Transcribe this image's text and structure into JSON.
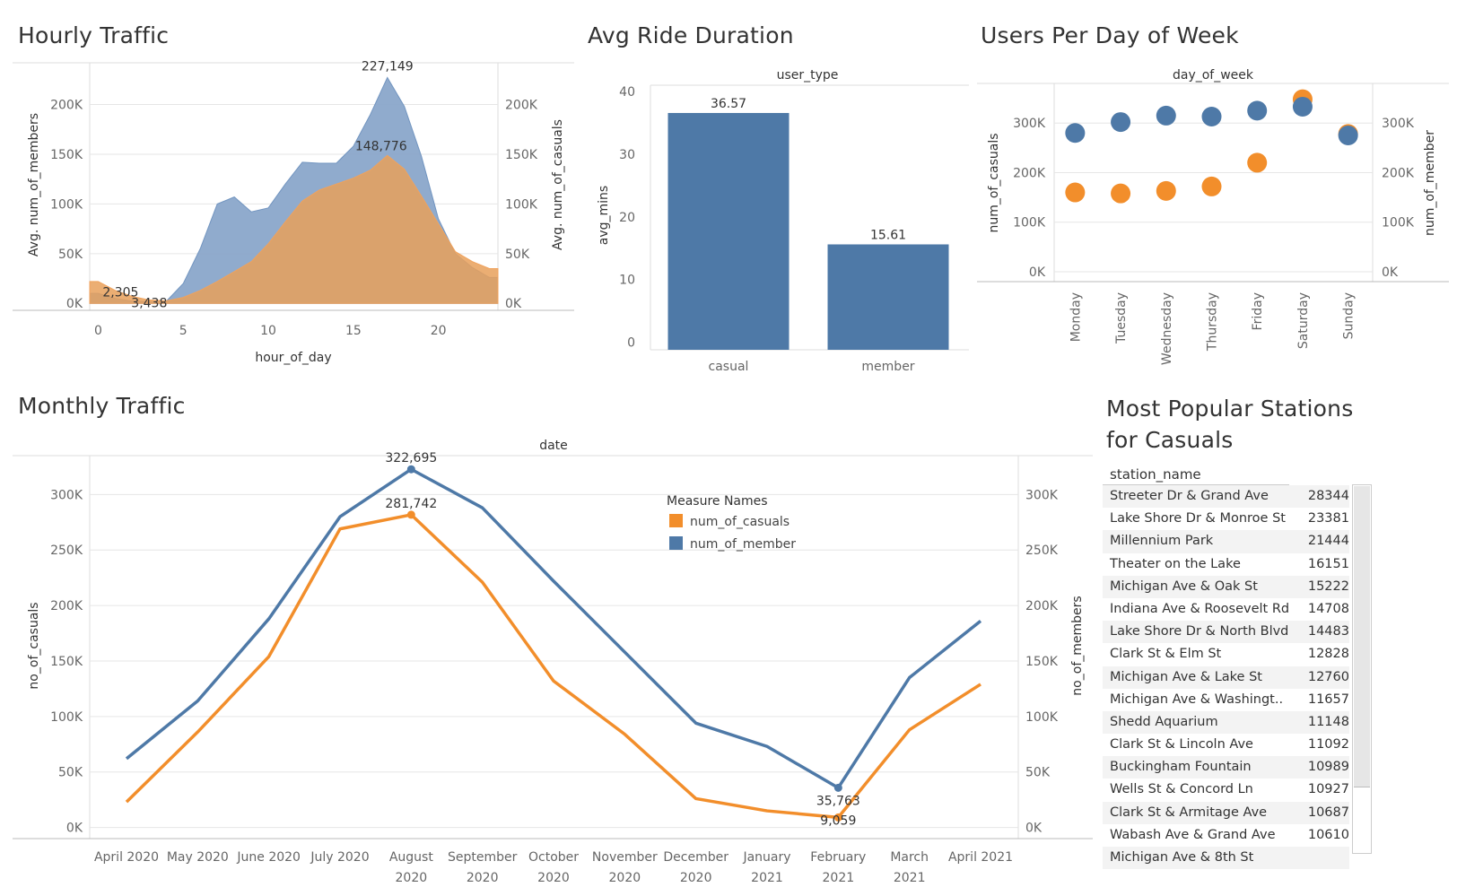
{
  "titles": {
    "hourly": "Hourly Traffic",
    "duration": "Avg Ride Duration",
    "dow": "Users Per Day of Week",
    "monthly": "Monthly Traffic",
    "stations": "Most Popular Stations\nfor Casuals"
  },
  "colors": {
    "member": "#4e79a7",
    "casual": "#f28e2b",
    "member_area": "#8aa7ca",
    "casual_area": "#e8a566",
    "grid": "#e6e6e6",
    "axis": "#cfcfcf"
  },
  "chart_data": [
    {
      "id": "hourly",
      "type": "area",
      "xlabel": "hour_of_day",
      "ylabel_left": "Avg. num_of_members",
      "ylabel_right": "Avg. num_of_casuals",
      "x": [
        0,
        1,
        2,
        3,
        4,
        5,
        6,
        7,
        8,
        9,
        10,
        11,
        12,
        13,
        14,
        15,
        16,
        17,
        18,
        19,
        20,
        21,
        22,
        23
      ],
      "xticks": [
        0,
        5,
        10,
        15,
        20
      ],
      "xlim": [
        -0.5,
        23.5
      ],
      "yticks": [
        0,
        50000,
        100000,
        150000,
        200000
      ],
      "ytick_labels": [
        "0K",
        "50K",
        "100K",
        "150K",
        "200K"
      ],
      "ylim": [
        -7000,
        242000
      ],
      "series": [
        {
          "name": "num_of_members",
          "values": [
            10000,
            5000,
            2305,
            1500,
            2000,
            20000,
            55000,
            100000,
            107000,
            92000,
            96000,
            120000,
            142000,
            141000,
            141000,
            158000,
            190000,
            227149,
            198000,
            148000,
            85000,
            50000,
            36000,
            26000
          ]
        },
        {
          "name": "num_of_casuals",
          "values": [
            22000,
            13000,
            7000,
            3438,
            2500,
            6000,
            13000,
            22000,
            32000,
            42000,
            60000,
            82000,
            103000,
            114000,
            120000,
            126000,
            134000,
            148776,
            135000,
            108000,
            80000,
            52000,
            42000,
            35000
          ]
        }
      ],
      "labels": [
        {
          "hour": 17,
          "value": 227149,
          "text": "227,149"
        },
        {
          "hour": 17,
          "value": 148776,
          "text": "148,776"
        },
        {
          "hour": 2,
          "value": 2305,
          "text": "2,305"
        },
        {
          "hour": 3,
          "value": 3438,
          "text": "3,438"
        }
      ]
    },
    {
      "id": "duration",
      "type": "bar",
      "header": "user_type",
      "categories": [
        "casual",
        "member"
      ],
      "values": [
        36.57,
        15.61
      ],
      "value_labels": [
        "36.57",
        "15.61"
      ],
      "ylabel": "avg_mins",
      "yticks": [
        0,
        10,
        20,
        30,
        40
      ],
      "ylim": [
        -1.2,
        41
      ]
    },
    {
      "id": "dow",
      "type": "scatter",
      "header": "day_of_week",
      "categories": [
        "Monday",
        "Tuesday",
        "Wednesday",
        "Thursday",
        "Friday",
        "Saturday",
        "Sunday"
      ],
      "ylabel_left": "num_of_casuals",
      "ylabel_right": "num_of_member",
      "yticks": [
        0,
        100000,
        200000,
        300000
      ],
      "ytick_labels": [
        "0K",
        "100K",
        "200K",
        "300K"
      ],
      "ylim": [
        -20000,
        380000
      ],
      "series": [
        {
          "name": "num_of_casuals",
          "values": [
            160000,
            158000,
            163000,
            172000,
            220000,
            348000,
            278000
          ]
        },
        {
          "name": "num_of_member",
          "values": [
            280000,
            302000,
            315000,
            313000,
            325000,
            333000,
            275000
          ]
        }
      ]
    },
    {
      "id": "monthly",
      "type": "line",
      "header": "date",
      "categories": [
        "April 2020",
        "May 2020",
        "June 2020",
        "July 2020",
        "August 2020",
        "September 2020",
        "October 2020",
        "November 2020",
        "December 2020",
        "January 2021",
        "February 2021",
        "March 2021",
        "April 2021"
      ],
      "ylabel_left": "no_of_casuals",
      "ylabel_right": "no_of_members",
      "yticks": [
        0,
        50000,
        100000,
        150000,
        200000,
        250000,
        300000
      ],
      "ytick_labels": [
        "0K",
        "50K",
        "100K",
        "150K",
        "200K",
        "250K",
        "300K"
      ],
      "ylim": [
        -10000,
        335000
      ],
      "legend_title": "Measure Names",
      "series": [
        {
          "name": "num_of_casuals",
          "values": [
            23000,
            86000,
            154000,
            269000,
            281742,
            221000,
            132000,
            84000,
            26000,
            15000,
            9059,
            88000,
            129000
          ]
        },
        {
          "name": "num_of_member",
          "values": [
            62000,
            114000,
            188000,
            280000,
            322695,
            288000,
            222000,
            158000,
            94000,
            73000,
            35763,
            135000,
            186000
          ]
        }
      ],
      "labels": [
        {
          "month": 4,
          "value": 322695,
          "text": "322,695"
        },
        {
          "month": 4,
          "value": 281742,
          "text": "281,742"
        },
        {
          "month": 10,
          "value": 35763,
          "text": "35,763"
        },
        {
          "month": 10,
          "value": 9059,
          "text": "9,059"
        }
      ]
    },
    {
      "id": "stations",
      "type": "table",
      "column_header": "station_name",
      "rows": [
        {
          "name": "Streeter Dr & Grand Ave",
          "value": "28344"
        },
        {
          "name": "Lake Shore Dr & Monroe St",
          "value": "23381"
        },
        {
          "name": "Millennium Park",
          "value": "21444"
        },
        {
          "name": "Theater on the Lake",
          "value": "16151"
        },
        {
          "name": "Michigan Ave & Oak St",
          "value": "15222"
        },
        {
          "name": "Indiana Ave & Roosevelt Rd",
          "value": "14708"
        },
        {
          "name": "Lake Shore Dr & North Blvd",
          "value": "14483"
        },
        {
          "name": "Clark St & Elm St",
          "value": "12828"
        },
        {
          "name": "Michigan Ave & Lake St",
          "value": "12760"
        },
        {
          "name": "Michigan Ave & Washingt..",
          "value": "11657"
        },
        {
          "name": "Shedd Aquarium",
          "value": "11148"
        },
        {
          "name": "Clark St & Lincoln Ave",
          "value": "11092"
        },
        {
          "name": "Buckingham Fountain",
          "value": "10989"
        },
        {
          "name": "Wells St & Concord Ln",
          "value": "10927"
        },
        {
          "name": "Clark St & Armitage Ave",
          "value": "10687"
        },
        {
          "name": "Wabash Ave & Grand Ave",
          "value": "10610"
        },
        {
          "name": "Michigan Ave & 8th St",
          "value": ""
        }
      ]
    }
  ]
}
